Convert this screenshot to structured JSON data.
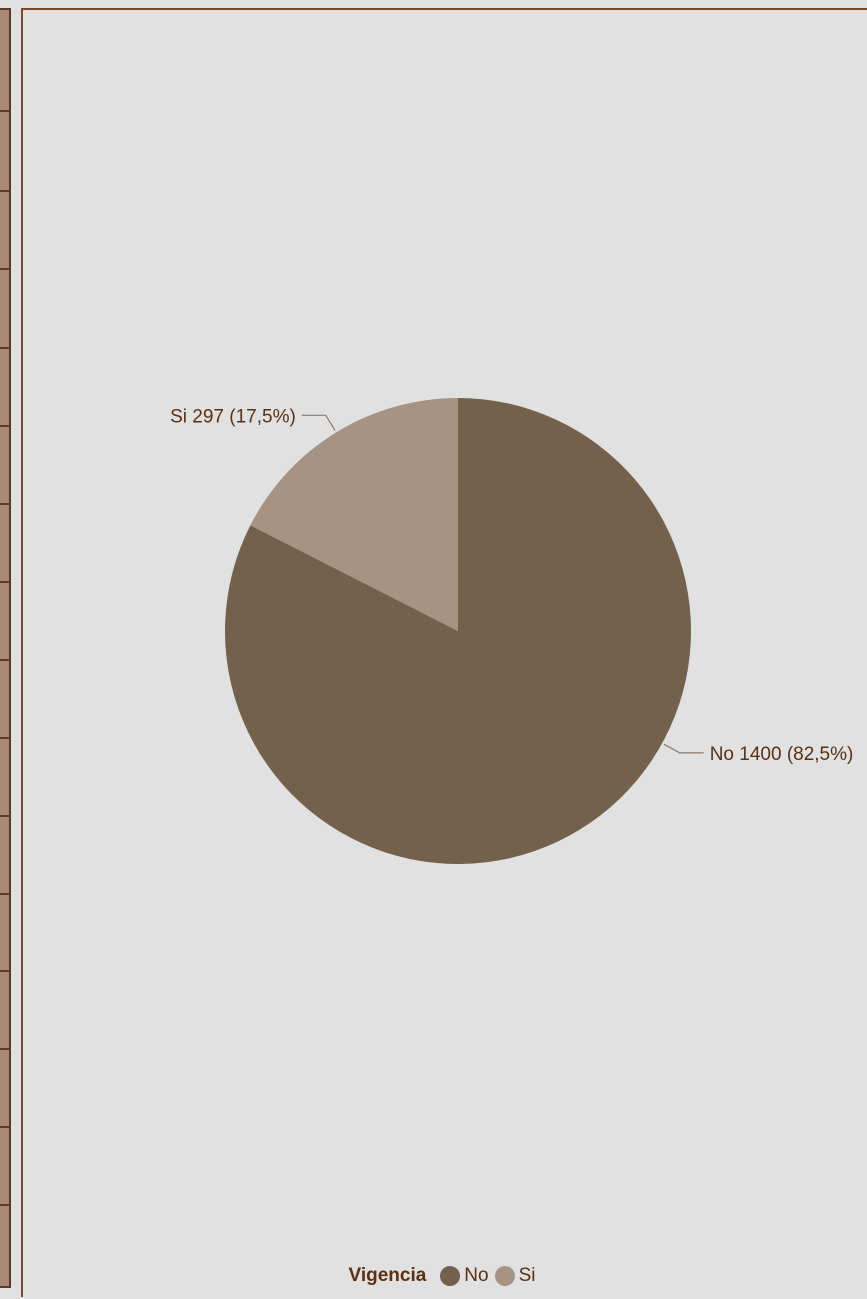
{
  "chart_data": {
    "type": "pie",
    "categories": [
      "No",
      "Si"
    ],
    "values": [
      1400,
      297
    ],
    "percentages": [
      "82,5%",
      "17,5%"
    ],
    "labels": [
      "No 1400 (82,5%)",
      "Si 297 (17,5%)"
    ],
    "colors": [
      "#73614c",
      "#a69383"
    ],
    "legend": {
      "title": "Vigencia",
      "position": "bottom"
    }
  }
}
